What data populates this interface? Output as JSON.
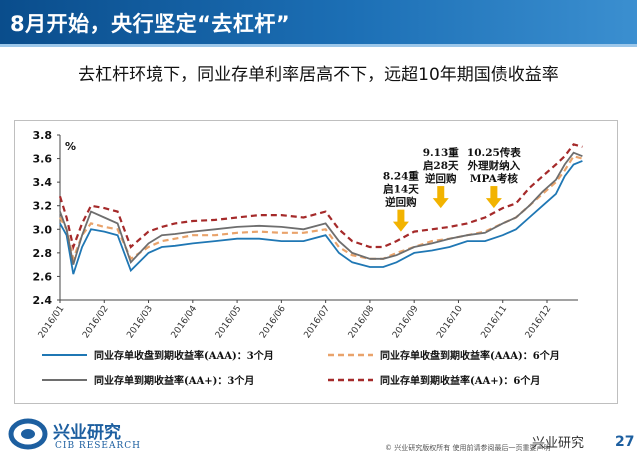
{
  "header": {
    "title": "8月开始，央行坚定“去杠杆”"
  },
  "subtitle": "去杠杆环境下，同业存单利率居高不下，远超10年期国债收益率",
  "footer": {
    "logo_cn": "兴业研究",
    "logo_en": "CIB RESEARCH",
    "copyright": "© 兴业研究版权所有   使用前请参阅最后一页重要声明",
    "page": "27",
    "wechat": "兴业研究"
  },
  "colors": {
    "aaa3m": "#1f77b4",
    "aaa6m": "#e9a36b",
    "aa3m": "#6e6e6e",
    "aa6m": "#a52a2a",
    "arrow": "#f2b300",
    "header": "#0a4d8c"
  },
  "chart_data": {
    "type": "line",
    "ylabel": "%",
    "ylim": [
      2.4,
      3.8
    ],
    "yticks": [
      "2.4",
      "2.6",
      "2.8",
      "3.0",
      "3.2",
      "3.4",
      "3.6",
      "3.8"
    ],
    "categories": [
      "2016/01",
      "2016/02",
      "2016/03",
      "2016/04",
      "2016/05",
      "2016/06",
      "2016/07",
      "2016/08",
      "2016/09",
      "2016/10",
      "2016/11",
      "2016/12"
    ],
    "x": [
      0,
      0.15,
      0.3,
      0.5,
      0.7,
      1.0,
      1.3,
      1.6,
      2.0,
      2.3,
      2.6,
      3.0,
      3.5,
      4.0,
      4.5,
      5.0,
      5.5,
      6.0,
      6.3,
      6.6,
      7.0,
      7.3,
      7.6,
      8.0,
      8.4,
      8.8,
      9.2,
      9.6,
      10.0,
      10.3,
      10.6,
      10.9,
      11.2,
      11.4,
      11.6,
      11.8
    ],
    "series": [
      {
        "name": "同业存单收盘到期收益率(AAA)：3个月",
        "style": "solid",
        "color": "#1f77b4",
        "values": [
          3.05,
          2.95,
          2.62,
          2.85,
          3.0,
          2.98,
          2.95,
          2.65,
          2.8,
          2.85,
          2.86,
          2.88,
          2.9,
          2.92,
          2.92,
          2.9,
          2.9,
          2.95,
          2.8,
          2.72,
          2.68,
          2.68,
          2.72,
          2.8,
          2.82,
          2.85,
          2.9,
          2.9,
          2.95,
          3.0,
          3.1,
          3.2,
          3.3,
          3.45,
          3.55,
          3.58
        ]
      },
      {
        "name": "同业存单收盘到期收益率(AAA)：6个月",
        "style": "dashed",
        "color": "#e9a36b",
        "values": [
          3.1,
          3.0,
          2.75,
          2.95,
          3.05,
          3.02,
          3.0,
          2.75,
          2.85,
          2.9,
          2.92,
          2.95,
          2.95,
          2.97,
          2.98,
          2.97,
          2.97,
          3.0,
          2.85,
          2.78,
          2.75,
          2.75,
          2.8,
          2.85,
          2.9,
          2.92,
          2.95,
          2.98,
          3.05,
          3.1,
          3.2,
          3.3,
          3.4,
          3.5,
          3.62,
          3.6
        ]
      },
      {
        "name": "同业存单到期收益率(AA+)：3个月",
        "style": "solid",
        "color": "#6e6e6e",
        "values": [
          3.15,
          3.0,
          2.7,
          2.95,
          3.15,
          3.1,
          3.05,
          2.72,
          2.88,
          2.95,
          2.96,
          2.98,
          3.0,
          3.02,
          3.03,
          3.02,
          3.0,
          3.05,
          2.9,
          2.8,
          2.75,
          2.75,
          2.78,
          2.85,
          2.88,
          2.92,
          2.95,
          2.97,
          3.05,
          3.1,
          3.2,
          3.32,
          3.42,
          3.55,
          3.65,
          3.62
        ]
      },
      {
        "name": "同业存单到期收益率(AA+)：6个月",
        "style": "dashed",
        "color": "#a52a2a",
        "values": [
          3.28,
          3.1,
          2.85,
          3.05,
          3.2,
          3.18,
          3.15,
          2.85,
          2.98,
          3.02,
          3.05,
          3.07,
          3.08,
          3.1,
          3.12,
          3.12,
          3.1,
          3.15,
          3.0,
          2.9,
          2.85,
          2.85,
          2.9,
          2.98,
          3.0,
          3.02,
          3.05,
          3.1,
          3.18,
          3.22,
          3.35,
          3.45,
          3.55,
          3.62,
          3.72,
          3.7
        ]
      }
    ],
    "annotations": [
      {
        "lines": [
          "8.24重",
          "启14天",
          "逆回购"
        ],
        "x": 7.7,
        "arrow_tip_y": 2.98
      },
      {
        "lines": [
          "9.13重",
          "启28天",
          "逆回购"
        ],
        "x": 8.6,
        "arrow_tip_y": 3.18
      },
      {
        "lines": [
          "10.25传表",
          "外理财纳入",
          "MPA考核"
        ],
        "x": 9.8,
        "arrow_tip_y": 3.18
      }
    ],
    "legend_placement": "bottom"
  }
}
